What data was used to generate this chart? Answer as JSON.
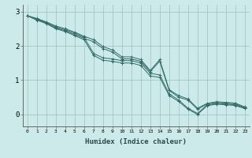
{
  "xlabel": "Humidex (Indice chaleur)",
  "ylabel": "",
  "background_color": "#cceaea",
  "line_color": "#336b66",
  "xlim": [
    -0.5,
    23.5
  ],
  "ylim": [
    -0.35,
    3.2
  ],
  "yticks": [
    0,
    1,
    2,
    3
  ],
  "xticks": [
    0,
    1,
    2,
    3,
    4,
    5,
    6,
    7,
    8,
    9,
    10,
    11,
    12,
    13,
    14,
    15,
    16,
    17,
    18,
    19,
    20,
    21,
    22,
    23
  ],
  "series": [
    [
      2.88,
      2.78,
      2.68,
      2.55,
      2.47,
      2.37,
      2.25,
      1.78,
      1.65,
      1.62,
      1.57,
      1.57,
      1.5,
      1.2,
      1.15,
      0.6,
      0.42,
      0.18,
      0.03,
      0.27,
      0.32,
      0.3,
      0.28,
      0.18
    ],
    [
      2.88,
      2.75,
      2.65,
      2.5,
      2.42,
      2.3,
      2.18,
      1.72,
      1.58,
      1.55,
      1.5,
      1.5,
      1.43,
      1.12,
      1.08,
      0.55,
      0.38,
      0.15,
      0.0,
      0.25,
      0.3,
      0.28,
      0.26,
      0.17
    ],
    [
      2.88,
      2.77,
      2.67,
      2.52,
      2.44,
      2.33,
      2.22,
      2.12,
      1.92,
      1.82,
      1.62,
      1.62,
      1.55,
      1.25,
      1.55,
      0.7,
      0.5,
      0.42,
      0.15,
      0.3,
      0.35,
      0.33,
      0.31,
      0.2
    ],
    [
      2.88,
      2.8,
      2.7,
      2.58,
      2.5,
      2.4,
      2.28,
      2.18,
      1.98,
      1.88,
      1.68,
      1.68,
      1.6,
      1.28,
      1.6,
      0.72,
      0.55,
      0.45,
      0.18,
      0.32,
      0.37,
      0.35,
      0.33,
      0.22
    ]
  ]
}
